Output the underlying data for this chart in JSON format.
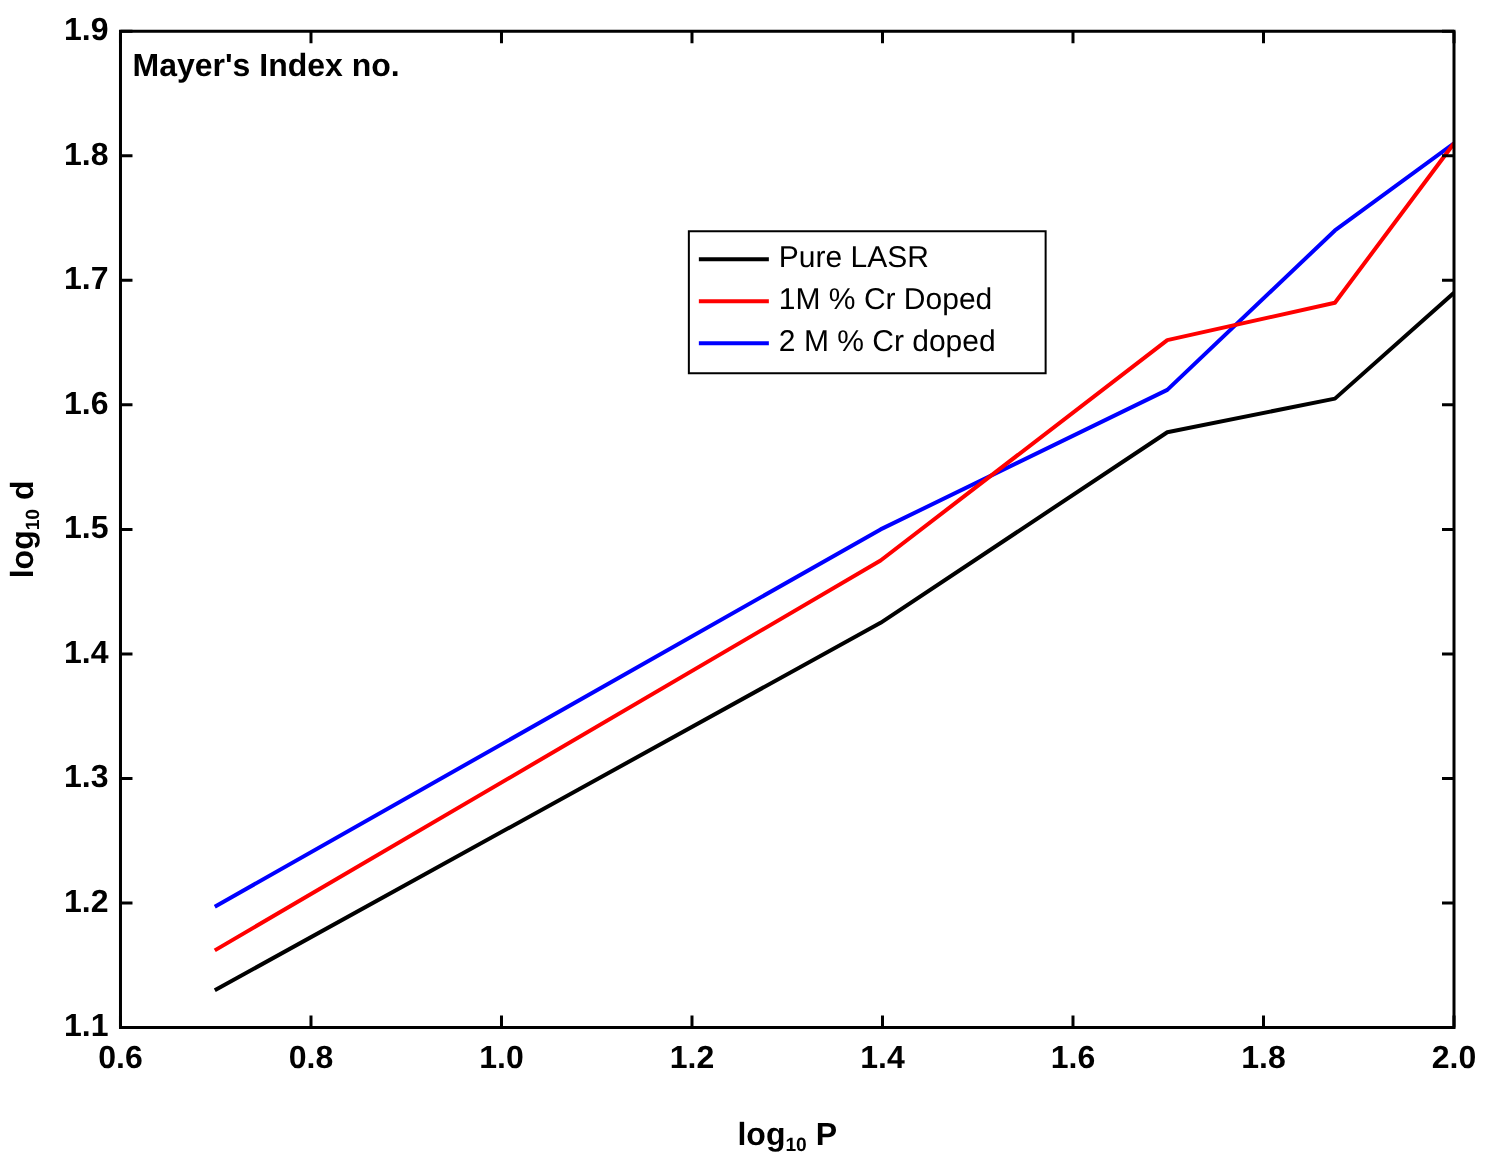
{
  "chart_data": {
    "type": "line",
    "xlabel": "log$_{10}$ P",
    "ylabel": "log$_{10}$ d",
    "annotations": [
      "Mayer's Index no."
    ],
    "x": [
      0.699,
      1.398,
      1.699,
      1.875,
      2.0
    ],
    "series": [
      {
        "name": "Pure LASR",
        "color": "#000000",
        "values": [
          1.13,
          1.425,
          1.578,
          1.605,
          1.69
        ]
      },
      {
        "name": "1M % Cr Doped",
        "color": "#ff0000",
        "values": [
          1.162,
          1.475,
          1.652,
          1.682,
          1.81
        ]
      },
      {
        "name": "2 M % Cr doped",
        "color": "#0000ff",
        "values": [
          1.197,
          1.5,
          1.612,
          1.74,
          1.81
        ]
      }
    ],
    "xlim": [
      0.6,
      2.0
    ],
    "xticks": [
      0.6,
      0.8,
      {
        "value": 1,
        "label": "1.0"
      },
      1.2,
      1.4,
      1.6,
      1.8,
      {
        "value": 2,
        "label": "2.0"
      }
    ],
    "ylim": [
      1.1,
      1.9
    ],
    "yticks": [
      1.1,
      1.2,
      1.3,
      1.4,
      1.5,
      1.6,
      1.7,
      1.8,
      1.9
    ],
    "grid": false,
    "legend": "top",
    "marker": "none",
    "line_style": "solid"
  }
}
